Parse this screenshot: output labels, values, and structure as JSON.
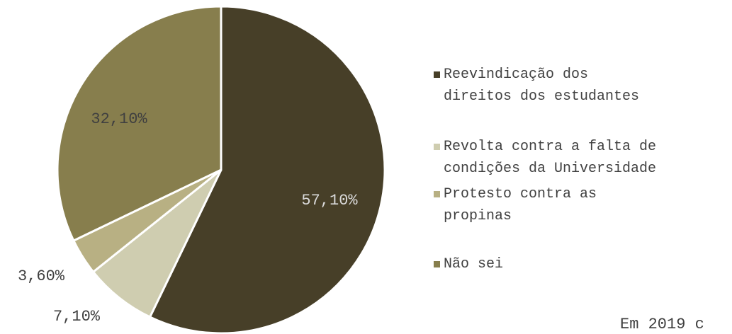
{
  "chart_data": {
    "type": "pie",
    "categories": [
      "Reevindicação dos direitos dos estudantes",
      "Revolta contra a falta de condições da Universidade",
      "Protesto contra as propinas",
      "Não sei"
    ],
    "values": [
      57.1,
      7.1,
      3.6,
      32.1
    ],
    "value_labels": [
      "57,10%",
      "7,10%",
      "3,60%",
      "32,10%"
    ],
    "colors": [
      "#473f28",
      "#cfcdb0",
      "#b8b083",
      "#877e4d"
    ],
    "annotation": "Em 2019 c"
  }
}
